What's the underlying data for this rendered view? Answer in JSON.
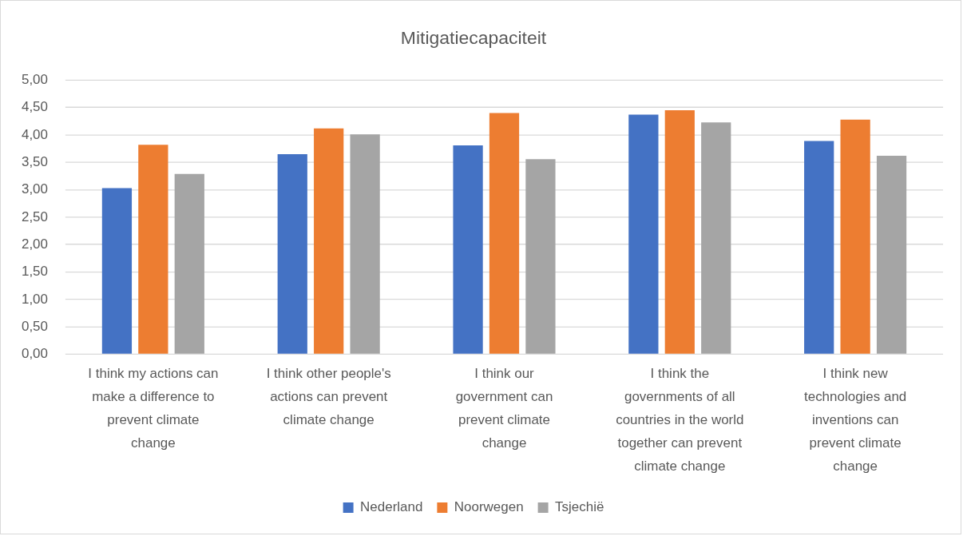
{
  "chart_data": {
    "type": "bar",
    "title": "Mitigatiecapaciteit",
    "categories": [
      "I think my actions can make a difference to prevent climate change",
      "I think other people's actions can prevent climate change",
      "I think our government can prevent climate change",
      "I think the governments of all countries in the world together can prevent climate change",
      "I think new technologies and inventions can prevent climate change"
    ],
    "series": [
      {
        "name": "Nederland",
        "color": "#4472c4",
        "values": [
          3.03,
          3.65,
          3.81,
          4.37,
          3.89
        ]
      },
      {
        "name": "Noorwegen",
        "color": "#ed7d31",
        "values": [
          3.82,
          4.12,
          4.4,
          4.45,
          4.28
        ]
      },
      {
        "name": "Tsjechië",
        "color": "#a5a5a5",
        "values": [
          3.29,
          4.01,
          3.56,
          4.23,
          3.62
        ]
      }
    ],
    "ylim": [
      0,
      5
    ],
    "yticks": [
      {
        "value": 0,
        "label": "0,00"
      },
      {
        "value": 0.5,
        "label": "0,50"
      },
      {
        "value": 1,
        "label": "1,00"
      },
      {
        "value": 1.5,
        "label": "1,50"
      },
      {
        "value": 2,
        "label": "2,00"
      },
      {
        "value": 2.5,
        "label": "2,50"
      },
      {
        "value": 3,
        "label": "3,00"
      },
      {
        "value": 3.5,
        "label": "3,50"
      },
      {
        "value": 4,
        "label": "4,00"
      },
      {
        "value": 4.5,
        "label": "4,50"
      },
      {
        "value": 5,
        "label": "5,00"
      }
    ],
    "grid": "y",
    "legend": "bottom"
  }
}
